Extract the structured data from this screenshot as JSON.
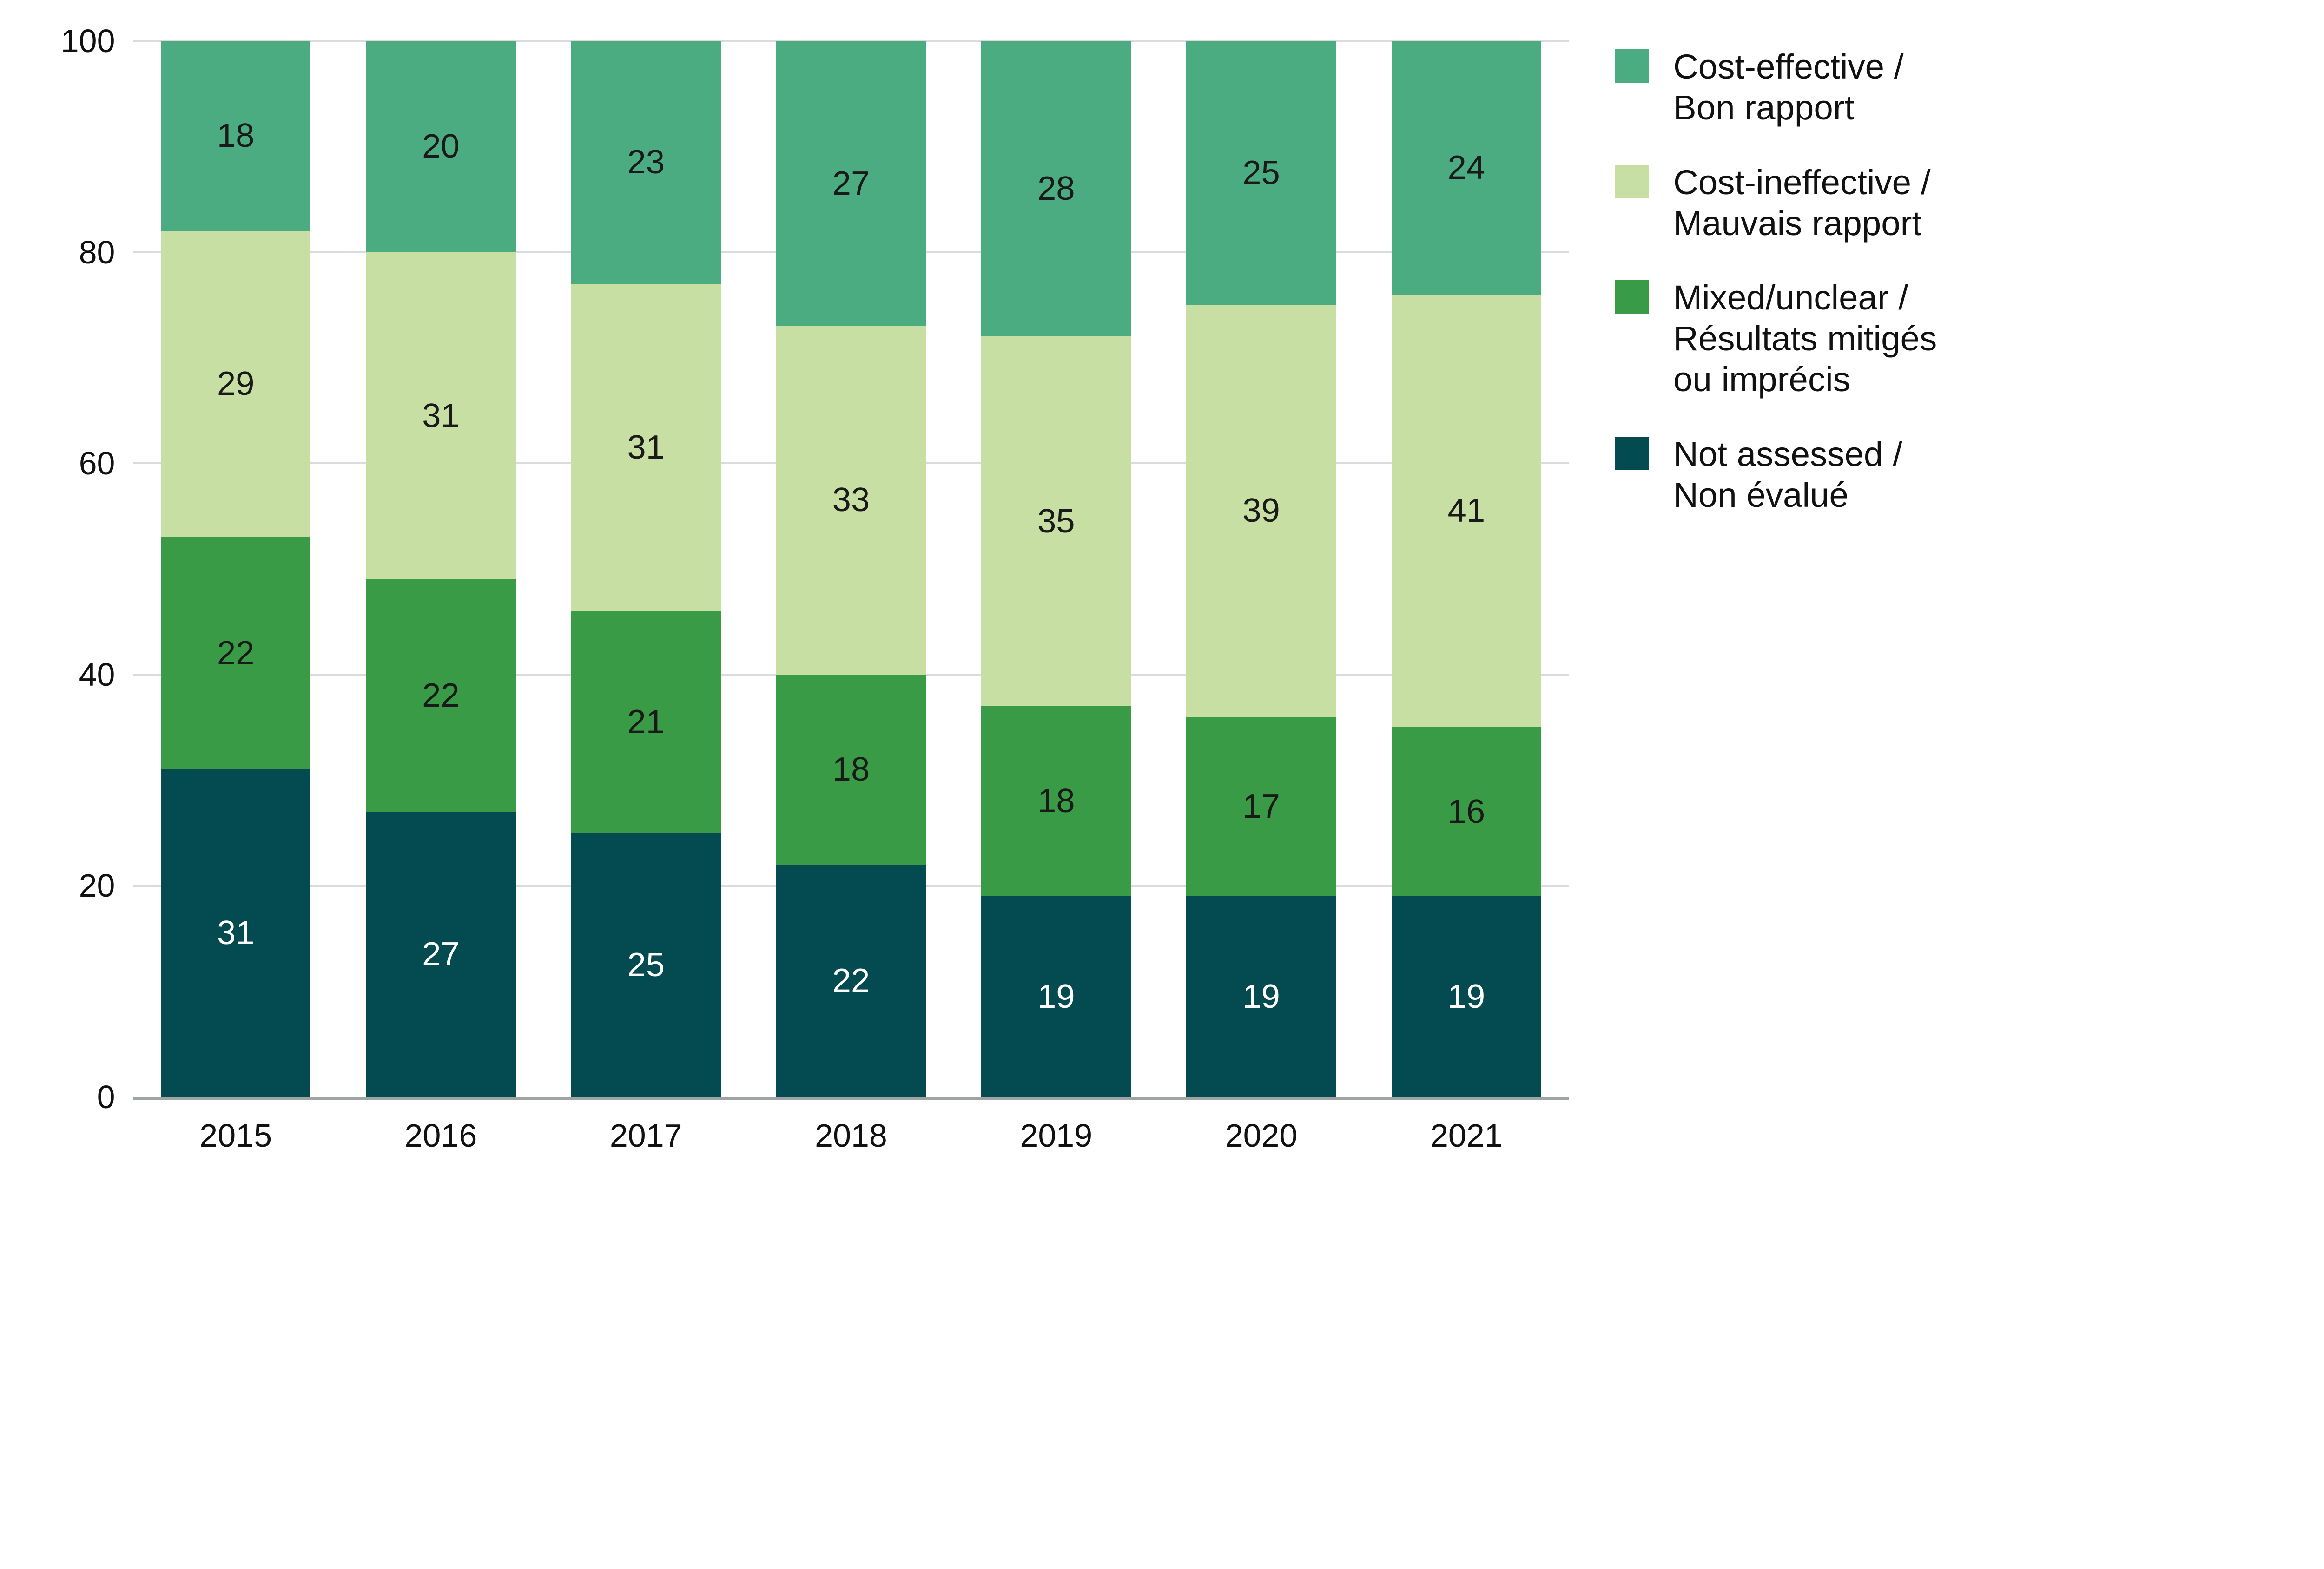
{
  "chart_data": {
    "type": "bar",
    "stacked": true,
    "title": "",
    "xlabel": "",
    "ylabel": "",
    "categories": [
      "2015",
      "2016",
      "2017",
      "2018",
      "2019",
      "2020",
      "2021"
    ],
    "series": [
      {
        "name": "Cost-effective / Bon rapport",
        "legend_lines": [
          "Cost-effective /",
          "Bon rapport"
        ],
        "color": "#4cac81",
        "label_color": "#1a1a1a",
        "values": [
          18,
          20,
          23,
          27,
          28,
          25,
          24
        ]
      },
      {
        "name": "Cost-ineffective / Mauvais rapport",
        "legend_lines": [
          "Cost-ineffective /",
          "Mauvais rapport"
        ],
        "color": "#c8dfa3",
        "label_color": "#1a1a1a",
        "values": [
          29,
          31,
          31,
          33,
          35,
          39,
          41
        ]
      },
      {
        "name": "Mixed/unclear / Résultats mitigés ou imprécis",
        "legend_lines": [
          "Mixed/unclear /",
          "Résultats mitigés",
          "ou imprécis"
        ],
        "color": "#3a9b46",
        "label_color": "#1a1a1a",
        "values": [
          22,
          22,
          21,
          18,
          18,
          17,
          16
        ]
      },
      {
        "name": "Not assessed / Non évalué",
        "legend_lines": [
          "Not assessed /",
          "Non évalué"
        ],
        "color": "#034b50",
        "label_color": "#ffffff",
        "values": [
          31,
          27,
          25,
          22,
          19,
          19,
          19
        ]
      }
    ],
    "yticks": [
      0,
      20,
      40,
      60,
      80,
      100
    ],
    "ylim": [
      0,
      100
    ],
    "grid": true,
    "legend_position": "right",
    "colors": {
      "gridline": "#d9dbdc",
      "axis_line": "#9fa3a3",
      "tick_label": "#111111",
      "background": "#ffffff"
    }
  }
}
